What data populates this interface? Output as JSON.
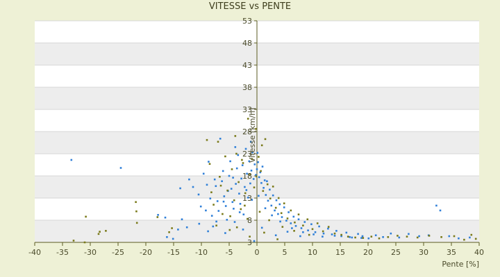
{
  "chart_data": {
    "type": "scatter",
    "title": "VITESSE vs PENTE",
    "xlabel": "Pente [%]",
    "ylabel": "Vitesse [km/h]",
    "xlim": [
      -40,
      40
    ],
    "ylim": [
      3,
      53
    ],
    "x_ticks": [
      -40,
      -35,
      -30,
      -25,
      -20,
      -15,
      -10,
      -5,
      0,
      5,
      10,
      15,
      20,
      25,
      30,
      35,
      40
    ],
    "y_ticks": [
      3,
      8,
      13,
      18,
      23,
      28,
      33,
      38,
      43,
      48,
      53
    ],
    "grid": true,
    "colors": {
      "background": "#eef1d6",
      "band_light": "#ffffff",
      "band_dark": "#ededed",
      "axis": "#5a5a20",
      "series_1": "#2f7fd8",
      "series_2": "#7a7a1a"
    },
    "series": [
      {
        "color_key": "series_1",
        "points": [
          [
            -33.4,
            21.6
          ],
          [
            -24.5,
            19.8
          ],
          [
            -17.8,
            9.2
          ],
          [
            -16.5,
            8.6
          ],
          [
            -16.2,
            4.2
          ],
          [
            -15.1,
            3.8
          ],
          [
            -14.2,
            5.9
          ],
          [
            -13.8,
            15.2
          ],
          [
            -13.5,
            8.2
          ],
          [
            -12.2,
            17.2
          ],
          [
            -11.5,
            15.5
          ],
          [
            -10.5,
            13.8
          ],
          [
            -10.1,
            11.1
          ],
          [
            -9.6,
            18.5
          ],
          [
            -9.2,
            10.2
          ],
          [
            -9.0,
            16.0
          ],
          [
            -8.7,
            21.2
          ],
          [
            -8.4,
            12.9
          ],
          [
            -8.1,
            9.0
          ],
          [
            -7.9,
            6.6
          ],
          [
            -7.6,
            17.2
          ],
          [
            -7.4,
            15.7
          ],
          [
            -7.1,
            12.3
          ],
          [
            -6.9,
            10.1
          ],
          [
            -6.6,
            26.4
          ],
          [
            -6.3,
            16.8
          ],
          [
            -6.1,
            19.1
          ],
          [
            -5.9,
            13.4
          ],
          [
            -5.6,
            11.2
          ],
          [
            -5.4,
            8.1
          ],
          [
            -5.2,
            14.6
          ],
          [
            -5.0,
            18.0
          ],
          [
            -4.8,
            21.3
          ],
          [
            -4.6,
            15.1
          ],
          [
            -4.4,
            12.1
          ],
          [
            -4.2,
            10.6
          ],
          [
            -4.0,
            7.6
          ],
          [
            -3.8,
            16.2
          ],
          [
            -3.6,
            19.7
          ],
          [
            -3.4,
            22.7
          ],
          [
            -3.2,
            14.0
          ],
          [
            -3.0,
            11.7
          ],
          [
            -2.8,
            17.4
          ],
          [
            -2.6,
            20.4
          ],
          [
            -2.4,
            9.3
          ],
          [
            -2.2,
            15.5
          ],
          [
            -2.0,
            24.1
          ],
          [
            -1.8,
            18.5
          ],
          [
            -1.6,
            13.1
          ],
          [
            -1.4,
            21.3
          ],
          [
            -1.2,
            16.3
          ],
          [
            -1.0,
            19.2
          ],
          [
            -0.8,
            23.3
          ],
          [
            -0.6,
            17.3
          ],
          [
            -0.4,
            20.6
          ],
          [
            -0.2,
            18.2
          ],
          [
            0.0,
            19.5
          ],
          [
            0.2,
            21.1
          ],
          [
            0.4,
            17.7
          ],
          [
            0.6,
            18.8
          ],
          [
            0.8,
            16.4
          ],
          [
            1.0,
            20.1
          ],
          [
            1.2,
            15.3
          ],
          [
            1.4,
            17.0
          ],
          [
            1.6,
            13.7
          ],
          [
            1.8,
            16.8
          ],
          [
            2.0,
            12.4
          ],
          [
            2.3,
            14.9
          ],
          [
            2.6,
            11.3
          ],
          [
            2.9,
            13.6
          ],
          [
            3.2,
            10.2
          ],
          [
            3.5,
            12.5
          ],
          [
            3.8,
            9.4
          ],
          [
            4.1,
            11.6
          ],
          [
            4.5,
            8.7
          ],
          [
            4.9,
            10.9
          ],
          [
            5.3,
            7.9
          ],
          [
            5.7,
            9.8
          ],
          [
            6.1,
            7.3
          ],
          [
            6.6,
            8.8
          ],
          [
            7.0,
            6.7
          ],
          [
            7.5,
            8.2
          ],
          [
            8.0,
            6.2
          ],
          [
            8.6,
            7.6
          ],
          [
            9.2,
            5.7
          ],
          [
            9.8,
            7.1
          ],
          [
            10.5,
            5.3
          ],
          [
            11.2,
            6.6
          ],
          [
            12.0,
            5.0
          ],
          [
            12.8,
            6.1
          ],
          [
            13.5,
            4.8
          ],
          [
            14.3,
            5.6
          ],
          [
            15.2,
            4.4
          ],
          [
            16.1,
            5.2
          ],
          [
            17.1,
            4.1
          ],
          [
            18.2,
            4.9
          ],
          [
            19.0,
            4.4
          ],
          [
            20.1,
            3.9
          ],
          [
            21.4,
            4.6
          ],
          [
            22.7,
            4.2
          ],
          [
            24.1,
            5.0
          ],
          [
            25.6,
            4.1
          ],
          [
            27.3,
            4.9
          ],
          [
            29.2,
            4.4
          ],
          [
            30.9,
            4.6
          ],
          [
            32.3,
            11.3
          ],
          [
            33.0,
            10.2
          ],
          [
            34.6,
            4.4
          ],
          [
            36.3,
            3.9
          ],
          [
            38.3,
            4.1
          ],
          [
            -6.0,
            12.2
          ],
          [
            -4.3,
            17.6
          ],
          [
            -3.1,
            9.8
          ],
          [
            -1.9,
            14.8
          ],
          [
            -0.9,
            12.6
          ],
          [
            0.3,
            13.5
          ],
          [
            1.5,
            10.7
          ],
          [
            2.7,
            9.1
          ],
          [
            4.2,
            7.7
          ],
          [
            6.3,
            6.2
          ],
          [
            8.3,
            5.3
          ],
          [
            10.2,
            4.8
          ],
          [
            11.8,
            4.3
          ],
          [
            14.0,
            4.5
          ],
          [
            16.7,
            4.2
          ],
          [
            18.8,
            4.0
          ],
          [
            -7.3,
            7.7
          ],
          [
            -5.7,
            5.1
          ],
          [
            -8.8,
            5.5
          ],
          [
            -2.5,
            5.9
          ],
          [
            -0.5,
            3.3
          ],
          [
            0.9,
            6.3
          ],
          [
            3.4,
            4.6
          ],
          [
            5.5,
            5.4
          ],
          [
            7.8,
            4.4
          ],
          [
            -10.4,
            7.2
          ],
          [
            -12.6,
            6.4
          ],
          [
            -3.9,
            24.5
          ],
          [
            -1.1,
            25.7
          ],
          [
            0.1,
            23.2
          ]
        ]
      },
      {
        "color_key": "series_2",
        "points": [
          [
            -33.0,
            3.4
          ],
          [
            -31.0,
            3.0
          ],
          [
            -30.8,
            8.8
          ],
          [
            -28.5,
            4.9
          ],
          [
            -28.3,
            5.4
          ],
          [
            -27.2,
            5.6
          ],
          [
            -21.8,
            12.1
          ],
          [
            -21.7,
            10.0
          ],
          [
            -21.6,
            7.4
          ],
          [
            -17.9,
            8.7
          ],
          [
            -15.8,
            5.3
          ],
          [
            -15.3,
            6.2
          ],
          [
            -9.0,
            26.1
          ],
          [
            -8.5,
            20.7
          ],
          [
            -8.2,
            14.3
          ],
          [
            -7.8,
            11.5
          ],
          [
            -7.3,
            6.8
          ],
          [
            -7.0,
            25.7
          ],
          [
            -6.7,
            17.8
          ],
          [
            -6.2,
            9.4
          ],
          [
            -5.7,
            22.4
          ],
          [
            -5.3,
            14.7
          ],
          [
            -4.9,
            5.8
          ],
          [
            -4.5,
            19.5
          ],
          [
            -4.1,
            12.5
          ],
          [
            -3.7,
            23.0
          ],
          [
            -3.3,
            16.6
          ],
          [
            -2.9,
            10.5
          ],
          [
            -2.5,
            20.9
          ],
          [
            -2.1,
            14.1
          ],
          [
            -1.7,
            8.3
          ],
          [
            -1.3,
            18.4
          ],
          [
            -0.9,
            21.8
          ],
          [
            -0.5,
            15.4
          ],
          [
            -0.1,
            17.9
          ],
          [
            0.3,
            22.3
          ],
          [
            0.7,
            19.1
          ],
          [
            1.1,
            14.6
          ],
          [
            1.5,
            26.3
          ],
          [
            1.9,
            16.1
          ],
          [
            2.4,
            12.9
          ],
          [
            2.9,
            15.6
          ],
          [
            3.4,
            10.8
          ],
          [
            3.9,
            13.0
          ],
          [
            4.4,
            9.6
          ],
          [
            4.9,
            11.8
          ],
          [
            5.5,
            8.4
          ],
          [
            6.1,
            10.2
          ],
          [
            6.8,
            7.5
          ],
          [
            7.5,
            9.3
          ],
          [
            8.3,
            6.8
          ],
          [
            9.1,
            8.2
          ],
          [
            10.0,
            6.0
          ],
          [
            10.9,
            7.3
          ],
          [
            11.9,
            5.5
          ],
          [
            12.9,
            6.5
          ],
          [
            14.0,
            5.0
          ],
          [
            15.2,
            4.7
          ],
          [
            16.4,
            4.3
          ],
          [
            17.7,
            4.1
          ],
          [
            19.1,
            4.0
          ],
          [
            20.6,
            4.3
          ],
          [
            22.0,
            3.9
          ],
          [
            23.6,
            4.2
          ],
          [
            25.3,
            4.5
          ],
          [
            27.0,
            4.3
          ],
          [
            28.9,
            4.1
          ],
          [
            31.0,
            4.5
          ],
          [
            33.2,
            4.2
          ],
          [
            35.5,
            4.4
          ],
          [
            37.3,
            3.6
          ],
          [
            38.6,
            4.7
          ],
          [
            39.4,
            3.8
          ],
          [
            -4.8,
            8.9
          ],
          [
            -2.2,
            11.3
          ],
          [
            0.5,
            9.9
          ],
          [
            2.2,
            8.0
          ],
          [
            4.6,
            6.5
          ],
          [
            6.7,
            5.6
          ],
          [
            9.4,
            4.7
          ],
          [
            -1.3,
            4.3
          ],
          [
            1.3,
            5.2
          ],
          [
            3.7,
            3.7
          ],
          [
            -3.6,
            6.4
          ],
          [
            -6.5,
            15.8
          ],
          [
            -0.2,
            28.6
          ],
          [
            0.9,
            24.9
          ],
          [
            -2.7,
            21.6
          ],
          [
            -3.9,
            27.0
          ],
          [
            -1.6,
            30.9
          ]
        ]
      }
    ]
  }
}
